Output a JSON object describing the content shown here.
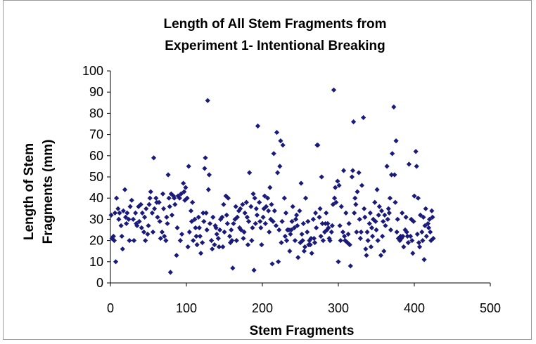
{
  "chart_data": {
    "type": "scatter",
    "title_lines": [
      "Length of All Stem Fragments from",
      "Experiment 1- Intentional Breaking"
    ],
    "xlabel": "Stem Fragments",
    "ylabel_lines": [
      "Length of Stem",
      "Fragments (mm)"
    ],
    "xlim": [
      0,
      500
    ],
    "ylim": [
      0,
      100
    ],
    "xticks": [
      0,
      100,
      200,
      300,
      400,
      500
    ],
    "yticks": [
      0,
      10,
      20,
      30,
      40,
      50,
      60,
      70,
      80,
      90,
      100
    ],
    "grid": false,
    "legend": "none",
    "marker": "diamond",
    "marker_color": "#1a1a7a",
    "points": [
      [
        1,
        32
      ],
      [
        2,
        21
      ],
      [
        4,
        22
      ],
      [
        5,
        20
      ],
      [
        6,
        33
      ],
      [
        7,
        10
      ],
      [
        8,
        40
      ],
      [
        10,
        35
      ],
      [
        11,
        30
      ],
      [
        12,
        33
      ],
      [
        14,
        27
      ],
      [
        15,
        22
      ],
      [
        16,
        16
      ],
      [
        17,
        34
      ],
      [
        19,
        44
      ],
      [
        20,
        31
      ],
      [
        21,
        28
      ],
      [
        22,
        33
      ],
      [
        24,
        30
      ],
      [
        25,
        20
      ],
      [
        26,
        36
      ],
      [
        28,
        39
      ],
      [
        30,
        30
      ],
      [
        31,
        20
      ],
      [
        33,
        33
      ],
      [
        34,
        28
      ],
      [
        35,
        27
      ],
      [
        37,
        36
      ],
      [
        38,
        29
      ],
      [
        40,
        37
      ],
      [
        41,
        26
      ],
      [
        42,
        33
      ],
      [
        44,
        24
      ],
      [
        45,
        31
      ],
      [
        46,
        20
      ],
      [
        47,
        35
      ],
      [
        49,
        23
      ],
      [
        50,
        27
      ],
      [
        51,
        37
      ],
      [
        52,
        40
      ],
      [
        53,
        43
      ],
      [
        55,
        33
      ],
      [
        56,
        24
      ],
      [
        57,
        59
      ],
      [
        58,
        35
      ],
      [
        60,
        40
      ],
      [
        61,
        38
      ],
      [
        62,
        31
      ],
      [
        64,
        38
      ],
      [
        65,
        29
      ],
      [
        66,
        21
      ],
      [
        68,
        24
      ],
      [
        69,
        42
      ],
      [
        70,
        35
      ],
      [
        71,
        22
      ],
      [
        73,
        20
      ],
      [
        74,
        31
      ],
      [
        75,
        28
      ],
      [
        76,
        51
      ],
      [
        77,
        40
      ],
      [
        78,
        36
      ],
      [
        79,
        5
      ],
      [
        80,
        42
      ],
      [
        81,
        32
      ],
      [
        83,
        41
      ],
      [
        84,
        40
      ],
      [
        85,
        37
      ],
      [
        87,
        13
      ],
      [
        88,
        26
      ],
      [
        89,
        41
      ],
      [
        91,
        40
      ],
      [
        92,
        20
      ],
      [
        93,
        42
      ],
      [
        94,
        23
      ],
      [
        96,
        47
      ],
      [
        97,
        43
      ],
      [
        98,
        39
      ],
      [
        99,
        45
      ],
      [
        101,
        40
      ],
      [
        102,
        17
      ],
      [
        103,
        55
      ],
      [
        104,
        24
      ],
      [
        106,
        34
      ],
      [
        107,
        29
      ],
      [
        108,
        38
      ],
      [
        109,
        20
      ],
      [
        111,
        30
      ],
      [
        112,
        26
      ],
      [
        113,
        22
      ],
      [
        114,
        18
      ],
      [
        116,
        31
      ],
      [
        117,
        26
      ],
      [
        118,
        22
      ],
      [
        119,
        14
      ],
      [
        121,
        19
      ],
      [
        122,
        33
      ],
      [
        123,
        29
      ],
      [
        124,
        54
      ],
      [
        125,
        59
      ],
      [
        126,
        33
      ],
      [
        127,
        25
      ],
      [
        128,
        86
      ],
      [
        129,
        44
      ],
      [
        130,
        51
      ],
      [
        131,
        28
      ],
      [
        133,
        20
      ],
      [
        134,
        16
      ],
      [
        135,
        31
      ],
      [
        137,
        18
      ],
      [
        138,
        27
      ],
      [
        139,
        26
      ],
      [
        140,
        23
      ],
      [
        142,
        21
      ],
      [
        143,
        17
      ],
      [
        144,
        25
      ],
      [
        145,
        30
      ],
      [
        147,
        31
      ],
      [
        148,
        17
      ],
      [
        149,
        37
      ],
      [
        150,
        24
      ],
      [
        152,
        41
      ],
      [
        153,
        32
      ],
      [
        154,
        28
      ],
      [
        155,
        40
      ],
      [
        157,
        22
      ],
      [
        158,
        19
      ],
      [
        159,
        25
      ],
      [
        160,
        20
      ],
      [
        161,
        7
      ],
      [
        162,
        28
      ],
      [
        164,
        30
      ],
      [
        165,
        36
      ],
      [
        166,
        20
      ],
      [
        167,
        31
      ],
      [
        169,
        34
      ],
      [
        170,
        26
      ],
      [
        171,
        35
      ],
      [
        172,
        25
      ],
      [
        174,
        37
      ],
      [
        175,
        21
      ],
      [
        176,
        24
      ],
      [
        177,
        33
      ],
      [
        179,
        38
      ],
      [
        180,
        31
      ],
      [
        181,
        18
      ],
      [
        182,
        29
      ],
      [
        183,
        52
      ],
      [
        185,
        36
      ],
      [
        186,
        20
      ],
      [
        187,
        26
      ],
      [
        188,
        42
      ],
      [
        189,
        6
      ],
      [
        190,
        40
      ],
      [
        191,
        28
      ],
      [
        192,
        35
      ],
      [
        193,
        32
      ],
      [
        194,
        74
      ],
      [
        196,
        38
      ],
      [
        197,
        29
      ],
      [
        198,
        26
      ],
      [
        199,
        18
      ],
      [
        201,
        31
      ],
      [
        202,
        35
      ],
      [
        203,
        41
      ],
      [
        204,
        28
      ],
      [
        205,
        36
      ],
      [
        207,
        40
      ],
      [
        208,
        34
      ],
      [
        209,
        24
      ],
      [
        210,
        45
      ],
      [
        211,
        30
      ],
      [
        212,
        37
      ],
      [
        213,
        9
      ],
      [
        214,
        29
      ],
      [
        215,
        61
      ],
      [
        216,
        34
      ],
      [
        218,
        27
      ],
      [
        219,
        71
      ],
      [
        220,
        52
      ],
      [
        221,
        10
      ],
      [
        222,
        25
      ],
      [
        223,
        55
      ],
      [
        224,
        67
      ],
      [
        225,
        19
      ],
      [
        226,
        29
      ],
      [
        227,
        65
      ],
      [
        229,
        40
      ],
      [
        230,
        22
      ],
      [
        231,
        33
      ],
      [
        232,
        20
      ],
      [
        233,
        25
      ],
      [
        235,
        25
      ],
      [
        236,
        15
      ],
      [
        237,
        23
      ],
      [
        238,
        25
      ],
      [
        239,
        29
      ],
      [
        240,
        36
      ],
      [
        242,
        26
      ],
      [
        243,
        20
      ],
      [
        244,
        30
      ],
      [
        245,
        32
      ],
      [
        246,
        27
      ],
      [
        247,
        12
      ],
      [
        249,
        34
      ],
      [
        250,
        19
      ],
      [
        251,
        47
      ],
      [
        252,
        23
      ],
      [
        253,
        20
      ],
      [
        254,
        28
      ],
      [
        255,
        15
      ],
      [
        256,
        17
      ],
      [
        257,
        40
      ],
      [
        259,
        24
      ],
      [
        260,
        29
      ],
      [
        261,
        18
      ],
      [
        262,
        20
      ],
      [
        263,
        18
      ],
      [
        264,
        21
      ],
      [
        265,
        14
      ],
      [
        267,
        30
      ],
      [
        268,
        21
      ],
      [
        269,
        19
      ],
      [
        270,
        33
      ],
      [
        271,
        26
      ],
      [
        272,
        65
      ],
      [
        273,
        65
      ],
      [
        275,
        31
      ],
      [
        276,
        35
      ],
      [
        277,
        22
      ],
      [
        278,
        50
      ],
      [
        279,
        28
      ],
      [
        280,
        20
      ],
      [
        282,
        24
      ],
      [
        283,
        28
      ],
      [
        284,
        33
      ],
      [
        285,
        25
      ],
      [
        286,
        28
      ],
      [
        287,
        26
      ],
      [
        288,
        21
      ],
      [
        289,
        20
      ],
      [
        291,
        24
      ],
      [
        292,
        27
      ],
      [
        293,
        37
      ],
      [
        294,
        91
      ],
      [
        295,
        40
      ],
      [
        296,
        45
      ],
      [
        297,
        38
      ],
      [
        299,
        48
      ],
      [
        300,
        10
      ],
      [
        301,
        46
      ],
      [
        302,
        27
      ],
      [
        303,
        20
      ],
      [
        304,
        36
      ],
      [
        306,
        24
      ],
      [
        307,
        53
      ],
      [
        308,
        22
      ],
      [
        309,
        20
      ],
      [
        310,
        33
      ],
      [
        312,
        19
      ],
      [
        313,
        23
      ],
      [
        314,
        28
      ],
      [
        315,
        18
      ],
      [
        316,
        8
      ],
      [
        318,
        50
      ],
      [
        319,
        53
      ],
      [
        320,
        76
      ],
      [
        321,
        33
      ],
      [
        322,
        40
      ],
      [
        323,
        37
      ],
      [
        324,
        24
      ],
      [
        325,
        43
      ],
      [
        327,
        52
      ],
      [
        328,
        30
      ],
      [
        329,
        21
      ],
      [
        330,
        24
      ],
      [
        331,
        46
      ],
      [
        333,
        78
      ],
      [
        334,
        35
      ],
      [
        335,
        31
      ],
      [
        336,
        16
      ],
      [
        337,
        13
      ],
      [
        338,
        24
      ],
      [
        339,
        20
      ],
      [
        341,
        28
      ],
      [
        342,
        33
      ],
      [
        343,
        17
      ],
      [
        344,
        26
      ],
      [
        345,
        22
      ],
      [
        346,
        30
      ],
      [
        348,
        38
      ],
      [
        349,
        29
      ],
      [
        350,
        25
      ],
      [
        351,
        44
      ],
      [
        352,
        20
      ],
      [
        353,
        32
      ],
      [
        354,
        36
      ],
      [
        356,
        13
      ],
      [
        357,
        34
      ],
      [
        358,
        22
      ],
      [
        359,
        29
      ],
      [
        360,
        15
      ],
      [
        361,
        32
      ],
      [
        362,
        27
      ],
      [
        364,
        55
      ],
      [
        365,
        30
      ],
      [
        366,
        35
      ],
      [
        367,
        33
      ],
      [
        368,
        40
      ],
      [
        369,
        25
      ],
      [
        370,
        51
      ],
      [
        371,
        61
      ],
      [
        373,
        83
      ],
      [
        374,
        51
      ],
      [
        375,
        38
      ],
      [
        376,
        67
      ],
      [
        377,
        24
      ],
      [
        378,
        30
      ],
      [
        379,
        21
      ],
      [
        381,
        20
      ],
      [
        382,
        22
      ],
      [
        383,
        21
      ],
      [
        384,
        33
      ],
      [
        385,
        22
      ],
      [
        386,
        17
      ],
      [
        388,
        25
      ],
      [
        389,
        31
      ],
      [
        390,
        24
      ],
      [
        391,
        22
      ],
      [
        392,
        19
      ],
      [
        393,
        56
      ],
      [
        395,
        22
      ],
      [
        396,
        30
      ],
      [
        397,
        20
      ],
      [
        398,
        14
      ],
      [
        399,
        29
      ],
      [
        400,
        41
      ],
      [
        402,
        62
      ],
      [
        403,
        55
      ],
      [
        404,
        23
      ],
      [
        405,
        40
      ],
      [
        406,
        19
      ],
      [
        407,
        17
      ],
      [
        408,
        32
      ],
      [
        410,
        24
      ],
      [
        411,
        20
      ],
      [
        412,
        31
      ],
      [
        413,
        11
      ],
      [
        414,
        27
      ],
      [
        415,
        35
      ],
      [
        416,
        22
      ],
      [
        418,
        28
      ],
      [
        419,
        26
      ],
      [
        420,
        30
      ],
      [
        421,
        24
      ],
      [
        422,
        20
      ],
      [
        423,
        34
      ],
      [
        424,
        31
      ],
      [
        425,
        21
      ]
    ]
  }
}
